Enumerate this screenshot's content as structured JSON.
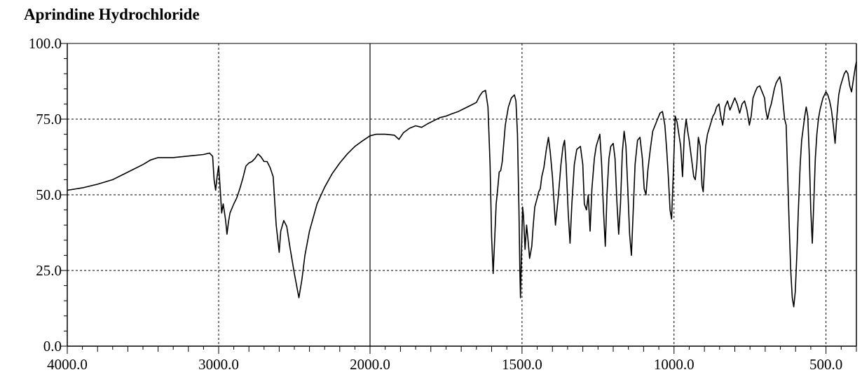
{
  "chart_data": {
    "type": "line",
    "title": "Aprindine Hydrochloride",
    "xlabel": "",
    "ylabel": "",
    "xlim": [
      4000.0,
      400.0
    ],
    "ylim": [
      0.0,
      100.0
    ],
    "x_ticks": [
      "4000.0",
      "3000.0",
      "2000.0",
      "1500.0",
      "1000.0",
      "500.0"
    ],
    "y_ticks": [
      "0.0",
      "25.0",
      "50.0",
      "75.0",
      "100.0"
    ],
    "x_axis_scale": "split-linear (4000-2000 compressed, 2000-400 expanded)",
    "grid": "dashed at y=25,50,75 and x=3000,1500,1000,500; solid at x=2000",
    "series": [
      {
        "values": [
          [
            4000,
            51.5
          ],
          [
            3900,
            52.3
          ],
          [
            3800,
            53.5
          ],
          [
            3700,
            55
          ],
          [
            3600,
            57.5
          ],
          [
            3500,
            60
          ],
          [
            3450,
            61.5
          ],
          [
            3400,
            62.3
          ],
          [
            3300,
            62.3
          ],
          [
            3200,
            62.8
          ],
          [
            3100,
            63.3
          ],
          [
            3060,
            63.8
          ],
          [
            3040,
            62.7
          ],
          [
            3030,
            55
          ],
          [
            3020,
            51.5
          ],
          [
            3010,
            56
          ],
          [
            3000,
            59.5
          ],
          [
            2990,
            52
          ],
          [
            2980,
            44
          ],
          [
            2970,
            47
          ],
          [
            2955,
            42
          ],
          [
            2945,
            37
          ],
          [
            2935,
            41
          ],
          [
            2925,
            44
          ],
          [
            2900,
            47
          ],
          [
            2880,
            49
          ],
          [
            2860,
            52
          ],
          [
            2840,
            55.5
          ],
          [
            2820,
            59.5
          ],
          [
            2800,
            60.5
          ],
          [
            2780,
            61
          ],
          [
            2760,
            62
          ],
          [
            2740,
            63.5
          ],
          [
            2720,
            62.5
          ],
          [
            2700,
            61
          ],
          [
            2680,
            61
          ],
          [
            2660,
            59
          ],
          [
            2640,
            56
          ],
          [
            2620,
            40
          ],
          [
            2600,
            31
          ],
          [
            2590,
            38
          ],
          [
            2570,
            41.5
          ],
          [
            2550,
            39.5
          ],
          [
            2530,
            33
          ],
          [
            2500,
            24
          ],
          [
            2470,
            16
          ],
          [
            2450,
            22
          ],
          [
            2430,
            30
          ],
          [
            2400,
            38
          ],
          [
            2350,
            47
          ],
          [
            2300,
            52.5
          ],
          [
            2250,
            57
          ],
          [
            2200,
            60.5
          ],
          [
            2150,
            63.5
          ],
          [
            2100,
            66
          ],
          [
            2050,
            67.8
          ],
          [
            2000,
            69.5
          ],
          [
            1980,
            70
          ],
          [
            1950,
            70
          ],
          [
            1920,
            69.7
          ],
          [
            1905,
            68.3
          ],
          [
            1890,
            70.5
          ],
          [
            1870,
            72
          ],
          [
            1850,
            72.8
          ],
          [
            1830,
            72.3
          ],
          [
            1810,
            73.5
          ],
          [
            1790,
            74.5
          ],
          [
            1770,
            75.5
          ],
          [
            1750,
            76
          ],
          [
            1730,
            76.8
          ],
          [
            1710,
            77.5
          ],
          [
            1690,
            78.5
          ],
          [
            1670,
            79.5
          ],
          [
            1650,
            80.5
          ],
          [
            1640,
            82.5
          ],
          [
            1630,
            84
          ],
          [
            1620,
            84.5
          ],
          [
            1612,
            79
          ],
          [
            1605,
            60
          ],
          [
            1600,
            36
          ],
          [
            1595,
            24
          ],
          [
            1590,
            35
          ],
          [
            1585,
            47
          ],
          [
            1580,
            52
          ],
          [
            1575,
            57.5
          ],
          [
            1570,
            58
          ],
          [
            1565,
            61
          ],
          [
            1555,
            73
          ],
          [
            1545,
            79
          ],
          [
            1535,
            82
          ],
          [
            1525,
            83
          ],
          [
            1520,
            81
          ],
          [
            1515,
            70
          ],
          [
            1510,
            45
          ],
          [
            1507,
            25
          ],
          [
            1505,
            16
          ],
          [
            1502,
            30
          ],
          [
            1498,
            46
          ],
          [
            1495,
            43
          ],
          [
            1490,
            32
          ],
          [
            1485,
            40
          ],
          [
            1480,
            35
          ],
          [
            1475,
            29
          ],
          [
            1468,
            33
          ],
          [
            1463,
            40
          ],
          [
            1458,
            46
          ],
          [
            1450,
            49
          ],
          [
            1445,
            51
          ],
          [
            1440,
            52
          ],
          [
            1435,
            56
          ],
          [
            1428,
            59
          ],
          [
            1420,
            65
          ],
          [
            1413,
            69
          ],
          [
            1407,
            64
          ],
          [
            1400,
            56
          ],
          [
            1390,
            40
          ],
          [
            1380,
            50
          ],
          [
            1372,
            60
          ],
          [
            1365,
            66
          ],
          [
            1360,
            68
          ],
          [
            1355,
            60
          ],
          [
            1348,
            44
          ],
          [
            1342,
            34
          ],
          [
            1336,
            47
          ],
          [
            1328,
            60
          ],
          [
            1320,
            65
          ],
          [
            1308,
            66
          ],
          [
            1300,
            60
          ],
          [
            1295,
            47
          ],
          [
            1288,
            45
          ],
          [
            1282,
            50
          ],
          [
            1276,
            38
          ],
          [
            1270,
            52
          ],
          [
            1262,
            62
          ],
          [
            1256,
            66
          ],
          [
            1250,
            68
          ],
          [
            1244,
            70
          ],
          [
            1238,
            60
          ],
          [
            1232,
            45
          ],
          [
            1226,
            33
          ],
          [
            1220,
            51
          ],
          [
            1214,
            62
          ],
          [
            1208,
            66
          ],
          [
            1200,
            67
          ],
          [
            1194,
            62
          ],
          [
            1188,
            48
          ],
          [
            1182,
            37
          ],
          [
            1176,
            47
          ],
          [
            1170,
            64
          ],
          [
            1164,
            71
          ],
          [
            1158,
            66
          ],
          [
            1152,
            52
          ],
          [
            1146,
            37
          ],
          [
            1140,
            30
          ],
          [
            1134,
            45
          ],
          [
            1128,
            60
          ],
          [
            1120,
            68
          ],
          [
            1112,
            69
          ],
          [
            1104,
            62
          ],
          [
            1098,
            52
          ],
          [
            1092,
            50
          ],
          [
            1086,
            58
          ],
          [
            1078,
            65
          ],
          [
            1070,
            71
          ],
          [
            1062,
            73
          ],
          [
            1054,
            75
          ],
          [
            1046,
            77
          ],
          [
            1038,
            77.5
          ],
          [
            1030,
            73
          ],
          [
            1024,
            65
          ],
          [
            1018,
            55
          ],
          [
            1013,
            45
          ],
          [
            1008,
            42
          ],
          [
            1002,
            58
          ],
          [
            996,
            76
          ],
          [
            990,
            74
          ],
          [
            984,
            70
          ],
          [
            978,
            66
          ],
          [
            972,
            56
          ],
          [
            966,
            70
          ],
          [
            960,
            75
          ],
          [
            955,
            71
          ],
          [
            950,
            68
          ],
          [
            945,
            64
          ],
          [
            940,
            60
          ],
          [
            935,
            56
          ],
          [
            930,
            55
          ],
          [
            925,
            60
          ],
          [
            920,
            69
          ],
          [
            914,
            66
          ],
          [
            908,
            53
          ],
          [
            904,
            51
          ],
          [
            900,
            58
          ],
          [
            896,
            66
          ],
          [
            890,
            70
          ],
          [
            884,
            72
          ],
          [
            878,
            74
          ],
          [
            872,
            76
          ],
          [
            866,
            77
          ],
          [
            860,
            79
          ],
          [
            852,
            80
          ],
          [
            846,
            76
          ],
          [
            840,
            73
          ],
          [
            832,
            79
          ],
          [
            824,
            81
          ],
          [
            816,
            78
          ],
          [
            808,
            80
          ],
          [
            800,
            82
          ],
          [
            792,
            80
          ],
          [
            784,
            77
          ],
          [
            776,
            80
          ],
          [
            768,
            81
          ],
          [
            760,
            78
          ],
          [
            752,
            73
          ],
          [
            746,
            76
          ],
          [
            740,
            82
          ],
          [
            733,
            84
          ],
          [
            726,
            85.5
          ],
          [
            718,
            86
          ],
          [
            710,
            84
          ],
          [
            702,
            82
          ],
          [
            698,
            78
          ],
          [
            692,
            75
          ],
          [
            686,
            78
          ],
          [
            680,
            80
          ],
          [
            676,
            82
          ],
          [
            670,
            85
          ],
          [
            664,
            87
          ],
          [
            658,
            88
          ],
          [
            652,
            89
          ],
          [
            646,
            86
          ],
          [
            641,
            80
          ],
          [
            636,
            75
          ],
          [
            631,
            73
          ],
          [
            626,
            56
          ],
          [
            621,
            40
          ],
          [
            616,
            25
          ],
          [
            611,
            16
          ],
          [
            606,
            13
          ],
          [
            601,
            18
          ],
          [
            596,
            30
          ],
          [
            591,
            45
          ],
          [
            585,
            60
          ],
          [
            580,
            68
          ],
          [
            575,
            72
          ],
          [
            570,
            76
          ],
          [
            565,
            79
          ],
          [
            560,
            76
          ],
          [
            555,
            63
          ],
          [
            550,
            45
          ],
          [
            545,
            34
          ],
          [
            540,
            48
          ],
          [
            535,
            62
          ],
          [
            530,
            70
          ],
          [
            525,
            75
          ],
          [
            520,
            78
          ],
          [
            515,
            80
          ],
          [
            510,
            82
          ],
          [
            505,
            83
          ],
          [
            500,
            84
          ],
          [
            494,
            83
          ],
          [
            488,
            81
          ],
          [
            482,
            78
          ],
          [
            476,
            73
          ],
          [
            470,
            67
          ],
          [
            464,
            76
          ],
          [
            458,
            83
          ],
          [
            452,
            86
          ],
          [
            446,
            88
          ],
          [
            440,
            90
          ],
          [
            434,
            91
          ],
          [
            428,
            90
          ],
          [
            422,
            86
          ],
          [
            416,
            84
          ],
          [
            410,
            88
          ],
          [
            404,
            92
          ],
          [
            400,
            94
          ]
        ]
      }
    ]
  }
}
